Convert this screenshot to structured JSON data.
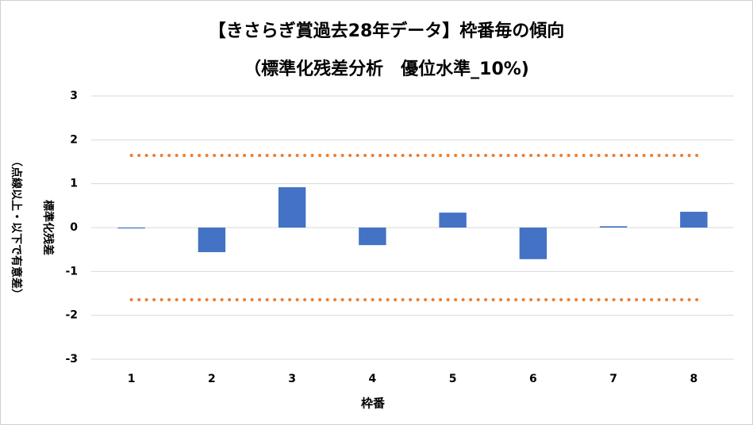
{
  "chart_data": {
    "type": "bar",
    "title": "【きさらぎ賞過去28年データ】枠番毎の傾向",
    "subtitle": "（標準化残差分析　優位水準_10%)",
    "y_label": [
      "標準化残差",
      "（点線以上・以下で有意差）"
    ],
    "x_label": "枠番",
    "categories": [
      "1",
      "2",
      "3",
      "4",
      "5",
      "6",
      "7",
      "8"
    ],
    "values": [
      -0.02,
      -0.56,
      0.92,
      -0.4,
      0.34,
      -0.72,
      0.03,
      0.36
    ],
    "color": "#4472c4",
    "reference_lines": {
      "values": [
        1.645,
        -1.645
      ],
      "color": "#ed7d31"
    },
    "ylim": [
      -3,
      3
    ],
    "yticks": [
      -3,
      -2,
      -1,
      0,
      1,
      2,
      3
    ],
    "grid": true
  }
}
